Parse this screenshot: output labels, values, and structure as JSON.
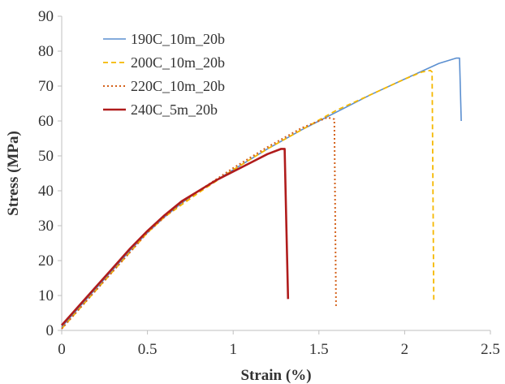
{
  "chart_data": {
    "type": "line",
    "xlabel": "Strain (%)",
    "ylabel": "Stress (MPa)",
    "xlim": [
      0,
      2.5
    ],
    "ylim": [
      0,
      90
    ],
    "xticks": [
      "0",
      "0.5",
      "1",
      "1.5",
      "2",
      "2.5"
    ],
    "yticks": [
      "0",
      "10",
      "20",
      "30",
      "40",
      "50",
      "60",
      "70",
      "80",
      "90"
    ],
    "grid": false,
    "legend_position": "top-left",
    "series": [
      {
        "name": "190C_10m_20b",
        "color": "#5b8fd0",
        "dash": "solid",
        "x": [
          0,
          0.1,
          0.2,
          0.3,
          0.4,
          0.5,
          0.6,
          0.7,
          0.8,
          1.0,
          1.2,
          1.4,
          1.6,
          1.8,
          2.0,
          2.2,
          2.3,
          2.32,
          2.33
        ],
        "y": [
          1,
          6.5,
          12,
          17.5,
          23,
          28,
          32.5,
          36.5,
          40,
          46,
          52,
          57.5,
          62.5,
          67.5,
          72,
          76.5,
          78,
          78,
          60
        ]
      },
      {
        "name": "200C_10m_20b",
        "color": "#f5b800",
        "dash": "dashed",
        "x": [
          0,
          0.1,
          0.2,
          0.3,
          0.4,
          0.5,
          0.6,
          0.7,
          0.8,
          1.0,
          1.2,
          1.4,
          1.6,
          1.8,
          2.0,
          2.1,
          2.15,
          2.16,
          2.17
        ],
        "y": [
          0.5,
          6,
          11.5,
          17,
          22.5,
          28,
          32.5,
          36,
          39.5,
          46,
          52,
          57.5,
          63,
          67.5,
          72,
          74,
          74.5,
          74,
          8
        ]
      },
      {
        "name": "220C_10m_20b",
        "color": "#d4611a",
        "dash": "dotted",
        "x": [
          0,
          0.1,
          0.2,
          0.3,
          0.4,
          0.5,
          0.6,
          0.7,
          0.8,
          1.0,
          1.2,
          1.4,
          1.55,
          1.59,
          1.6
        ],
        "y": [
          0.5,
          6,
          11.5,
          17,
          22.5,
          28,
          32.5,
          36.5,
          40,
          46.5,
          52.5,
          58,
          61,
          60.5,
          7
        ]
      },
      {
        "name": "240C_5m_20b",
        "color": "#b01c1c",
        "dash": "solid",
        "x": [
          0,
          0.1,
          0.2,
          0.3,
          0.4,
          0.5,
          0.6,
          0.7,
          0.8,
          0.9,
          1.0,
          1.1,
          1.2,
          1.28,
          1.3,
          1.31,
          1.32
        ],
        "y": [
          1.5,
          7,
          12.5,
          18,
          23.5,
          28.5,
          33,
          37,
          40,
          43,
          45.5,
          48,
          50.5,
          52,
          52,
          30,
          9
        ]
      }
    ]
  }
}
